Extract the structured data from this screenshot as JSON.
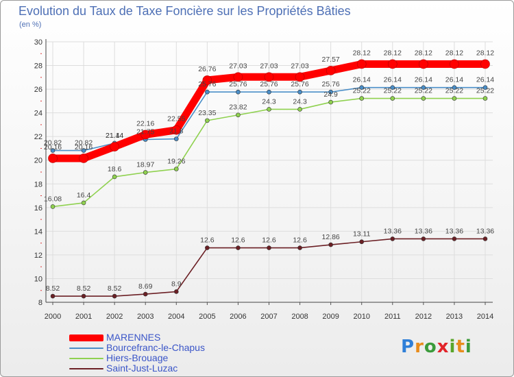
{
  "chart_data": {
    "type": "line",
    "title": "Evolution du Taux de Taxe Foncière sur les Propriétés Bâties",
    "ylabel": "(en %)",
    "xlabel": "",
    "ylim": [
      8,
      30
    ],
    "yticks": [
      "8",
      "10",
      "12",
      "14",
      "16",
      "18",
      "20",
      "22",
      "24",
      "26",
      "28",
      "30"
    ],
    "categories": [
      "2000",
      "2001",
      "2002",
      "2003",
      "2004",
      "2005",
      "2006",
      "2007",
      "2008",
      "2009",
      "2010",
      "2011",
      "2012",
      "2013",
      "2014"
    ],
    "series": [
      {
        "name": "MARENNES",
        "color": "#ff0000",
        "values": [
          20.16,
          20.16,
          21.14,
          22.16,
          22.55,
          26.76,
          27.03,
          27.03,
          27.03,
          27.57,
          28.12,
          28.12,
          28.12,
          28.12,
          28.12
        ],
        "labels": [
          "20.16",
          "20.16",
          "21.14",
          "22.16",
          "22.55",
          "26.76",
          "27.03",
          "27.03",
          "27.03",
          "27.57",
          "28.12",
          "28.12",
          "28.12",
          "28.12",
          "28.12"
        ]
      },
      {
        "name": "Bourcefranc-le-Chapus",
        "color": "#4a8ec8",
        "values": [
          20.82,
          20.82,
          21.44,
          21.75,
          21.8,
          25.76,
          25.76,
          25.76,
          25.76,
          25.76,
          26.14,
          26.14,
          26.14,
          26.14,
          26.14
        ],
        "labels": [
          "20.82",
          "20.82",
          "21.44",
          "21.75",
          "21.8",
          "25.76",
          "25.76",
          "25.76",
          "25.76",
          "25.76",
          "26.14",
          "26.14",
          "26.14",
          "26.14",
          "26.14"
        ]
      },
      {
        "name": "Hiers-Brouage",
        "color": "#8fd14f",
        "values": [
          16.08,
          16.4,
          18.6,
          18.97,
          19.26,
          23.35,
          23.82,
          24.3,
          24.3,
          24.9,
          25.22,
          25.22,
          25.22,
          25.22,
          25.22
        ],
        "labels": [
          "16.08",
          "16.4",
          "18.6",
          "18.97",
          "19.26",
          "23.35",
          "23.82",
          "24.3",
          "24.3",
          "24.9",
          "25.22",
          "25.22",
          "25.22",
          "25.22",
          "25.22"
        ]
      },
      {
        "name": "Saint-Just-Luzac",
        "color": "#6b1f24",
        "values": [
          8.52,
          8.52,
          8.52,
          8.69,
          8.9,
          12.6,
          12.6,
          12.6,
          12.6,
          12.86,
          13.11,
          13.36,
          13.36,
          13.36,
          13.36
        ],
        "labels": [
          "8.52",
          "8.52",
          "8.52",
          "8.69",
          "8.9",
          "12.6",
          "12.6",
          "12.6",
          "12.6",
          "12.86",
          "13.11",
          "13.36",
          "13.36",
          "13.36",
          "13.36"
        ]
      }
    ],
    "legend_position": "bottom-left",
    "grid": true
  },
  "logo": {
    "text": "Proxiti"
  }
}
